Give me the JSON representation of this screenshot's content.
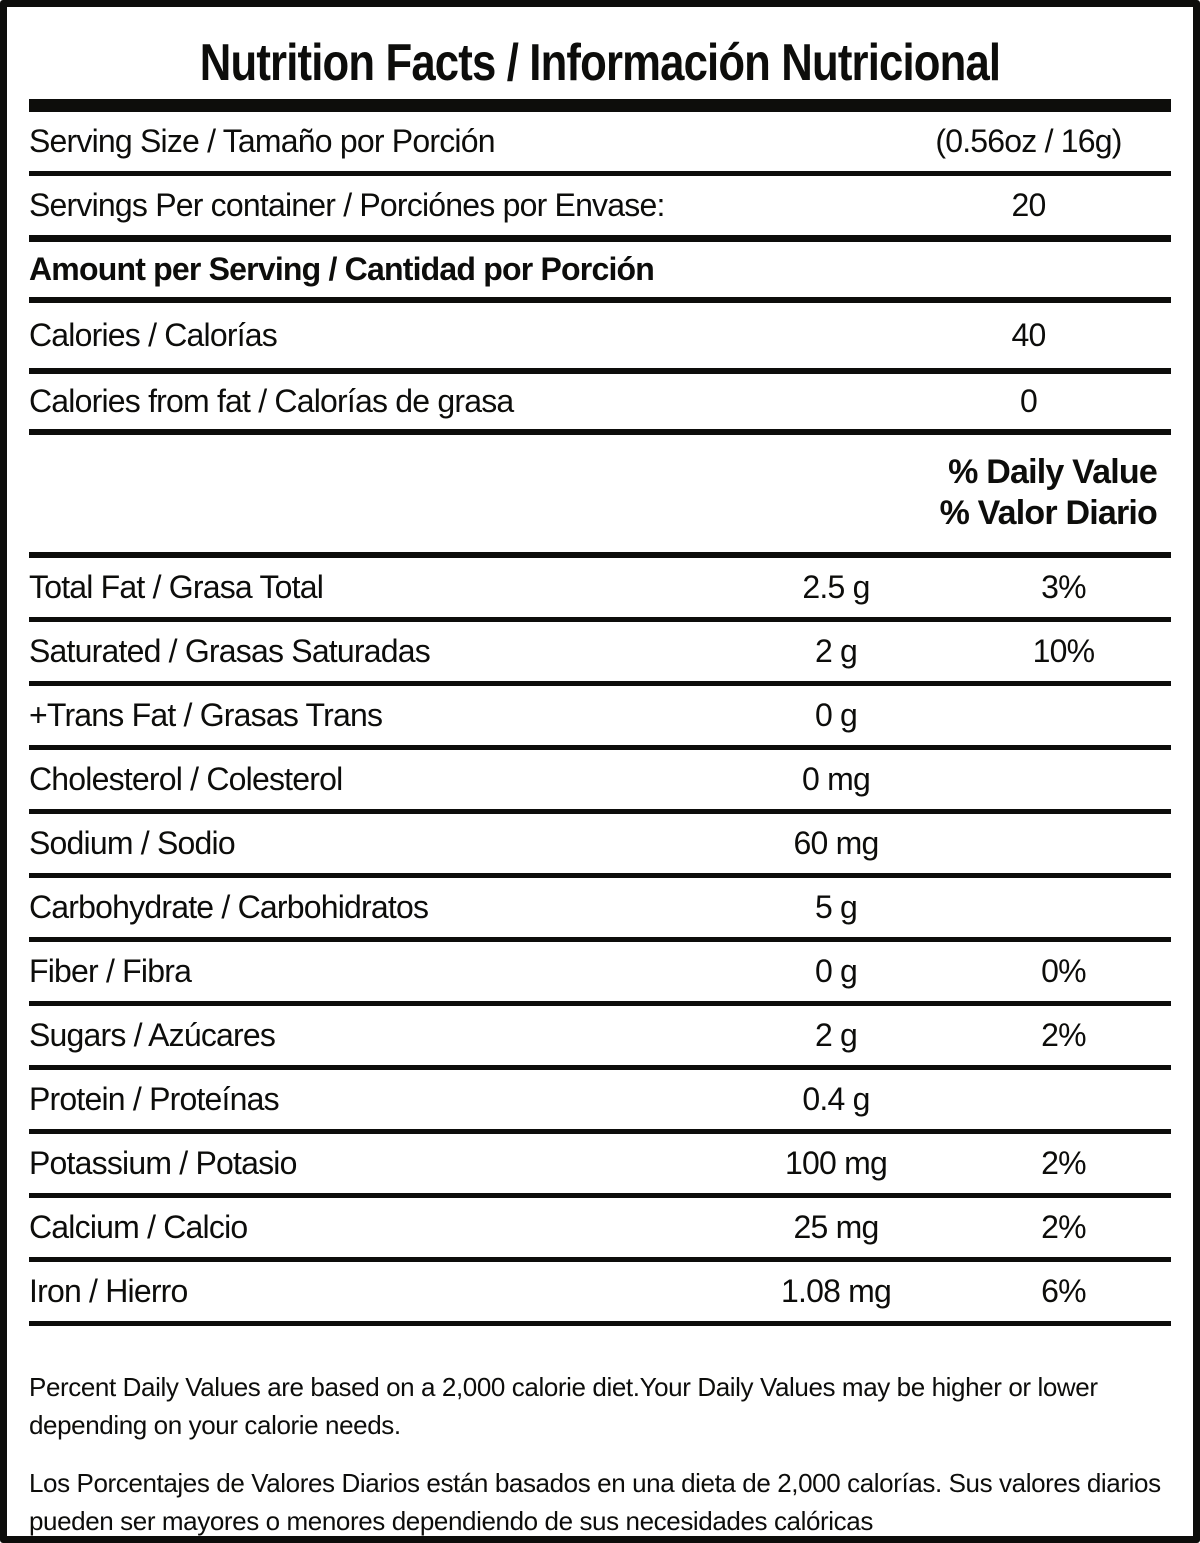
{
  "colors": {
    "ink": "#0d0d0b",
    "background": "#ffffff"
  },
  "title": "Nutrition Facts / Información Nutricional",
  "serving": {
    "size_label": "Serving Size / Tamaño por Porción",
    "size_value": "(0.56oz / 16g)",
    "per_container_label": "Servings Per container / Porciónes por Envase:",
    "per_container_value": "20"
  },
  "amount_heading": "Amount per Serving / Cantidad por Porción",
  "calories": {
    "label": "Calories / Calorías",
    "value": "40"
  },
  "calories_from_fat": {
    "label": "Calories from fat / Calorías de grasa",
    "value": "0"
  },
  "daily_value_heading": {
    "line1": "% Daily Value",
    "line2": "% Valor Diario"
  },
  "nutrients": [
    {
      "label": "Total Fat / Grasa Total",
      "amount": "2.5 g",
      "dv": "3%"
    },
    {
      "label": "Saturated / Grasas Saturadas",
      "amount": "2 g",
      "dv": "10%"
    },
    {
      "label": "+Trans Fat / Grasas Trans",
      "amount": "0 g",
      "dv": ""
    },
    {
      "label": "Cholesterol / Colesterol",
      "amount": "0 mg",
      "dv": ""
    },
    {
      "label": "Sodium / Sodio",
      "amount": "60 mg",
      "dv": ""
    },
    {
      "label": "Carbohydrate / Carbohidratos",
      "amount": "5 g",
      "dv": ""
    },
    {
      "label": "Fiber / Fibra",
      "amount": "0 g",
      "dv": "0%"
    },
    {
      "label": "Sugars / Azúcares",
      "amount": "2 g",
      "dv": "2%"
    },
    {
      "label": "Protein / Proteínas",
      "amount": "0.4 g",
      "dv": ""
    },
    {
      "label": "Potassium / Potasio",
      "amount": "100 mg",
      "dv": "2%"
    },
    {
      "label": "Calcium / Calcio",
      "amount": "25 mg",
      "dv": "2%"
    },
    {
      "label": "Iron / Hierro",
      "amount": "1.08 mg",
      "dv": "6%"
    }
  ],
  "footnotes": {
    "english": "Percent Daily Values are based on a 2,000 calorie diet.Your Daily Values may be higher or lower depending on your calorie needs.",
    "spanish": "Los Porcentajes de Valores Diarios están basados en una dieta de 2,000 calorías. Sus valores diarios pueden ser mayores o menores dependiendo de sus necesidades calóricas"
  }
}
